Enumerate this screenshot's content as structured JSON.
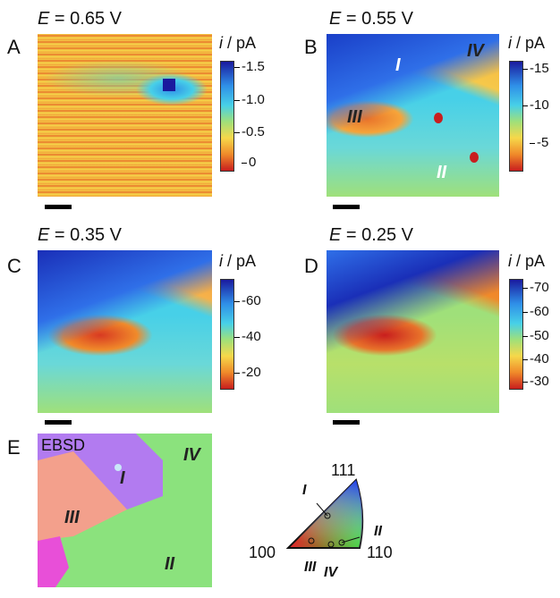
{
  "panels": {
    "A": {
      "letter": "A",
      "potential": "= 0.65 V",
      "E": "E",
      "cbar": {
        "label_i": "i",
        "label_unit": " / pA",
        "ticks": [
          "-1.5",
          "-1.0",
          "-0.5",
          "0"
        ]
      }
    },
    "B": {
      "letter": "B",
      "potential": "= 0.55 V",
      "E": "E",
      "cbar": {
        "label_i": "i",
        "label_unit": " / pA",
        "ticks": [
          "-15",
          "-10",
          "-5"
        ]
      },
      "regions": [
        "I",
        "II",
        "III",
        "IV"
      ]
    },
    "C": {
      "letter": "C",
      "potential": "= 0.35 V",
      "E": "E",
      "cbar": {
        "label_i": "i",
        "label_unit": " / pA",
        "ticks": [
          "-60",
          "-40",
          "-20"
        ]
      }
    },
    "D": {
      "letter": "D",
      "potential": "= 0.25 V",
      "E": "E",
      "cbar": {
        "label_i": "i",
        "label_unit": " / pA",
        "ticks": [
          "-70",
          "-60",
          "-50",
          "-40",
          "-30"
        ]
      }
    },
    "E": {
      "letter": "E",
      "map_label": "EBSD",
      "regions": [
        "I",
        "II",
        "III",
        "IV"
      ],
      "triangle": {
        "corner_111": "111",
        "corner_100": "100",
        "corner_110": "110",
        "points": [
          "I",
          "II",
          "III",
          "IV"
        ]
      }
    }
  },
  "colors": {
    "high": "#1a1a9e",
    "mid_blue": "#2f8fe8",
    "cyan": "#47d0e8",
    "green": "#9fe07a",
    "yellow": "#f6d84a",
    "orange": "#f08a2a",
    "red": "#c81e1e",
    "ebsd_purple": "#b27bf0",
    "ebsd_pink": "#f3a08c",
    "ebsd_green": "#8be27d",
    "ebsd_magenta": "#e84fd8"
  }
}
